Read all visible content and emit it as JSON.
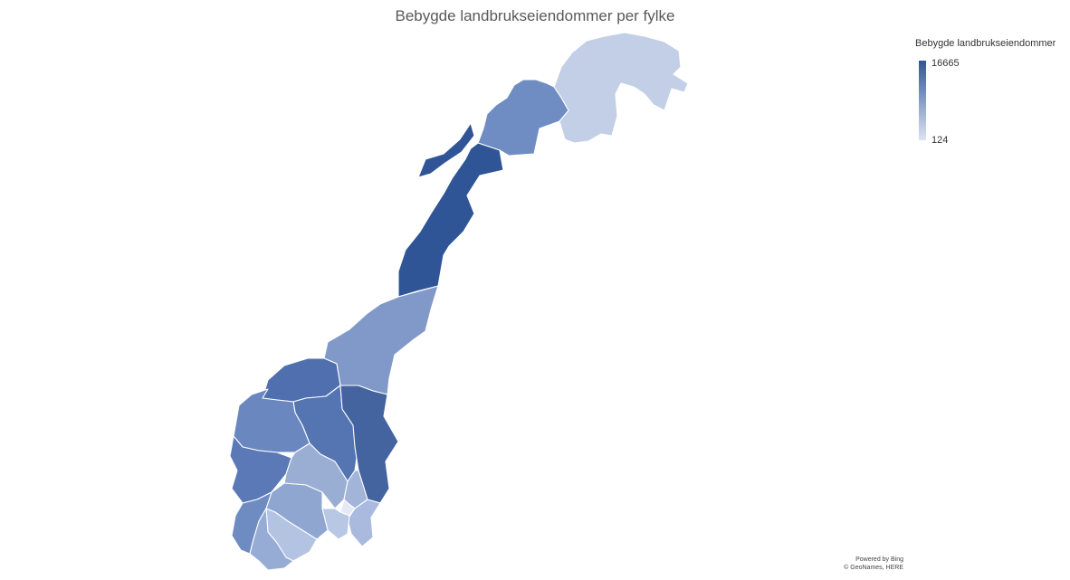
{
  "title": "Bebygde landbrukseiendommer per fylke",
  "legend": {
    "title": "Bebygde landbrukseiendommer",
    "max_label": "16665",
    "min_label": "124",
    "color_min": "#dde4f2",
    "color_max": "#2f5597"
  },
  "attribution": {
    "line1": "Powered by Bing",
    "line2": "© GeoNames, HERE"
  },
  "map_data": {
    "type": "choropleth",
    "country": "Norway",
    "unit": "counties",
    "scale_min": 124,
    "scale_max": 16665,
    "regions": [
      {
        "id": "finnmark",
        "color": "#c3cfe6"
      },
      {
        "id": "troms",
        "color": "#6f8dc2"
      },
      {
        "id": "nordland",
        "color": "#2f5597"
      },
      {
        "id": "trondelag",
        "color": "#8199c8"
      },
      {
        "id": "more-og-romsdal",
        "color": "#4f6fae"
      },
      {
        "id": "oppland",
        "color": "#5574b2"
      },
      {
        "id": "hedmark",
        "color": "#44649f"
      },
      {
        "id": "sogn-og-fjordane",
        "color": "#6a88bf"
      },
      {
        "id": "hordaland",
        "color": "#5a79b6"
      },
      {
        "id": "buskerud",
        "color": "#9aaed4"
      },
      {
        "id": "akershus",
        "color": "#a2b4d8"
      },
      {
        "id": "oslo",
        "color": "#e4e9f4"
      },
      {
        "id": "ostfold",
        "color": "#a9bade"
      },
      {
        "id": "vestfold",
        "color": "#b8c7e4"
      },
      {
        "id": "telemark",
        "color": "#8ea6d0"
      },
      {
        "id": "rogaland",
        "color": "#6f8cc2"
      },
      {
        "id": "aust-agder",
        "color": "#b3c3e2"
      },
      {
        "id": "vest-agder",
        "color": "#97acd4"
      }
    ]
  }
}
